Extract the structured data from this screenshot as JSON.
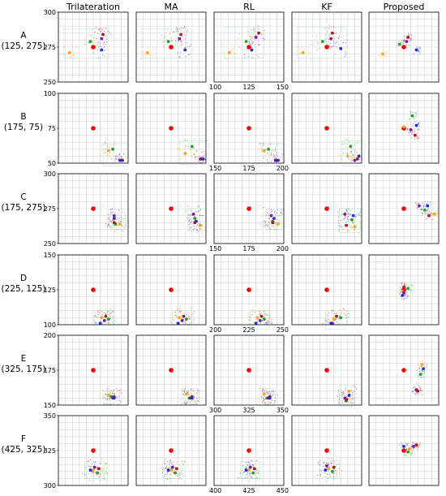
{
  "chart_data": {
    "type": "scatter",
    "columns": [
      "Trilateration",
      "MA",
      "RL",
      "KF",
      "Proposed"
    ],
    "colors": {
      "true": "#ff0000",
      "orange": "#f5a623",
      "green": "#22a02a",
      "blue": "#1f2fd0",
      "purple": "#7a1aa6",
      "darkred": "#a51d1d",
      "grid": "#d6d6d6"
    },
    "series_markers": [
      "true-position",
      "orange",
      "green",
      "purple",
      "darkred",
      "blue"
    ],
    "rows": [
      {
        "letter": "A",
        "coord": "(125, 275)",
        "truth": [
          125,
          275
        ],
        "ylim": [
          250,
          300
        ],
        "yticks": [
          250,
          275,
          300
        ],
        "xlim": [
          100,
          150
        ],
        "xticks": [
          100,
          125,
          150
        ],
        "estimates": [
          {
            "orange": [
              108,
              271
            ],
            "green": [
              123,
              279
            ],
            "purple": [
              131,
              281
            ],
            "darkred": [
              132,
              284
            ],
            "blue": [
              131,
              273
            ]
          },
          {
            "orange": [
              108,
              271
            ],
            "green": [
              123,
              279
            ],
            "purple": [
              131,
              281
            ],
            "darkred": [
              132,
              284
            ],
            "blue": [
              135,
              273
            ]
          },
          {
            "orange": [
              111,
              271
            ],
            "green": [
              123,
              279
            ],
            "purple": [
              130,
              282
            ],
            "darkred": [
              132,
              285
            ],
            "blue": [
              127,
              273
            ]
          },
          {
            "orange": [
              108,
              271
            ],
            "green": [
              122,
              279
            ],
            "purple": [
              128,
              281
            ],
            "darkred": [
              129,
              285
            ],
            "blue": [
              135,
              274
            ]
          },
          {
            "orange": [
              110,
              270
            ],
            "green": [
              122,
              277
            ],
            "purple": [
              127,
              279
            ],
            "darkred": [
              128,
              282
            ],
            "blue": [
              134,
              273
            ]
          }
        ]
      },
      {
        "letter": "B",
        "coord": "(175, 75)",
        "truth": [
          175,
          75
        ],
        "ylim": [
          50,
          100
        ],
        "yticks": [
          50,
          75,
          100
        ],
        "xlim": [
          150,
          200
        ],
        "xticks": [
          150,
          175,
          200
        ],
        "estimates": [
          {
            "orange": [
              186,
              59
            ],
            "green": [
              189,
              60
            ],
            "purple": [
              194,
              52
            ],
            "darkred": [
              196,
              52
            ],
            "blue": [
              195,
              52
            ]
          },
          {
            "orange": [
              185,
              57
            ],
            "green": [
              190,
              62
            ],
            "purple": [
              196,
              53
            ],
            "darkred": [
              197,
              53
            ],
            "blue": [
              198,
              53
            ]
          },
          {
            "orange": [
              186,
              59
            ],
            "green": [
              189,
              60
            ],
            "purple": [
              194,
              52
            ],
            "darkred": [
              196,
              52
            ],
            "blue": [
              195,
              52
            ]
          },
          {
            "orange": [
              190,
              55
            ],
            "green": [
              192,
              62
            ],
            "purple": [
              195,
              52
            ],
            "darkred": [
              197,
              53
            ],
            "blue": [
              198,
              55
            ]
          },
          {
            "orange": [
              175,
              76
            ],
            "green": [
              181,
              84
            ],
            "purple": [
              180,
              74
            ],
            "darkred": [
              183,
              70
            ],
            "blue": [
              184,
              77
            ]
          }
        ]
      },
      {
        "letter": "C",
        "coord": "(175, 275)",
        "truth": [
          175,
          275
        ],
        "ylim": [
          250,
          300
        ],
        "yticks": [
          250,
          275,
          300
        ],
        "xlim": [
          150,
          200
        ],
        "xticks": [
          150,
          175,
          200
        ],
        "estimates": [
          {
            "orange": [
              194,
              264
            ],
            "green": [
              191,
              264
            ],
            "purple": [
              190,
              270
            ],
            "darkred": [
              190,
              265
            ],
            "blue": [
              190,
              268
            ]
          },
          {
            "orange": [
              196,
              263
            ],
            "green": [
              192,
              268
            ],
            "purple": [
              191,
              271
            ],
            "darkred": [
              192,
              265
            ],
            "blue": [
              193,
              266
            ]
          },
          {
            "orange": [
              196,
              264
            ],
            "green": [
              192,
              266
            ],
            "purple": [
              191,
              270
            ],
            "darkred": [
              192,
              265
            ],
            "blue": [
              193,
              268
            ]
          },
          {
            "orange": [
              195,
              262
            ],
            "green": [
              193,
              267
            ],
            "purple": [
              188,
              271
            ],
            "darkred": [
              189,
              263
            ],
            "blue": [
              194,
              270
            ]
          },
          {
            "orange": [
              197,
              271
            ],
            "green": [
              190,
              274
            ],
            "purple": [
              186,
              277
            ],
            "darkred": [
              193,
              270
            ],
            "blue": [
              192,
              277
            ]
          }
        ]
      },
      {
        "letter": "D",
        "coord": "(225, 125)",
        "truth": [
          225,
          125
        ],
        "ylim": [
          100,
          150
        ],
        "yticks": [
          100,
          125,
          150
        ],
        "xlim": [
          200,
          250
        ],
        "xticks": [
          200,
          225,
          250
        ],
        "estimates": [
          {
            "orange": [
              231,
              105
            ],
            "green": [
              236,
              104
            ],
            "purple": [
              233,
              103
            ],
            "darkred": [
              234,
              106
            ],
            "blue": [
              230,
              101
            ]
          },
          {
            "orange": [
              231,
              105
            ],
            "green": [
              236,
              104
            ],
            "purple": [
              233,
              103
            ],
            "darkred": [
              234,
              106
            ],
            "blue": [
              230,
              101
            ]
          },
          {
            "orange": [
              231,
              105
            ],
            "green": [
              236,
              104
            ],
            "purple": [
              233,
              103
            ],
            "darkred": [
              234,
              106
            ],
            "blue": [
              230,
              101
            ]
          },
          {
            "orange": [
              230,
              104
            ],
            "green": [
              235,
              105
            ],
            "purple": [
              229,
              101
            ],
            "darkred": [
              232,
              106
            ],
            "blue": [
              228,
              101
            ]
          },
          {
            "orange": [
              224,
              124
            ],
            "green": [
              228,
              126
            ],
            "purple": [
              225,
              123
            ],
            "darkred": [
              225,
              127
            ],
            "blue": [
              224,
              121
            ]
          }
        ]
      },
      {
        "letter": "E",
        "coord": "(325, 175)",
        "truth": [
          325,
          175
        ],
        "ylim": [
          150,
          200
        ],
        "yticks": [
          150,
          175,
          200
        ],
        "xlim": [
          300,
          350
        ],
        "xticks": [
          300,
          325,
          350
        ],
        "estimates": [
          {
            "orange": [
              336,
              157
            ],
            "green": [
              338,
              156
            ],
            "purple": [
              339,
              155
            ],
            "darkred": [
              340,
              156
            ],
            "blue": [
              340,
              155
            ]
          },
          {
            "orange": [
              336,
              158
            ],
            "green": [
              338,
              155
            ],
            "purple": [
              339,
              155
            ],
            "darkred": [
              340,
              156
            ],
            "blue": [
              340,
              155
            ]
          },
          {
            "orange": [
              336,
              158
            ],
            "green": [
              338,
              155
            ],
            "purple": [
              339,
              155
            ],
            "darkred": [
              340,
              156
            ],
            "blue": [
              340,
              155
            ]
          },
          {
            "orange": [
              341,
              160
            ],
            "green": [
              339,
              153
            ],
            "purple": [
              338,
              155
            ],
            "darkred": [
              339,
              154
            ],
            "blue": [
              341,
              157
            ]
          },
          {
            "orange": [
              338,
              179
            ],
            "green": [
              337,
              172
            ],
            "purple": [
              334,
              161
            ],
            "darkred": [
              335,
              160
            ],
            "blue": [
              339,
              176
            ]
          }
        ]
      },
      {
        "letter": "F",
        "coord": "(425, 325)",
        "truth": [
          425,
          325
        ],
        "ylim": [
          300,
          350
        ],
        "yticks": [
          300,
          325,
          350
        ],
        "xlim": [
          400,
          450
        ],
        "xticks": [
          400,
          425,
          450
        ],
        "estimates": [
          {
            "orange": [
              425,
              311
            ],
            "green": [
              428,
              309
            ],
            "purple": [
              426,
              313
            ],
            "darkred": [
              429,
              312
            ],
            "blue": [
              423,
              311
            ]
          },
          {
            "orange": [
              425,
              311
            ],
            "green": [
              428,
              309
            ],
            "purple": [
              426,
              313
            ],
            "darkred": [
              429,
              312
            ],
            "blue": [
              423,
              311
            ]
          },
          {
            "orange": [
              425,
              311
            ],
            "green": [
              428,
              309
            ],
            "purple": [
              426,
              313
            ],
            "darkred": [
              429,
              312
            ],
            "blue": [
              423,
              311
            ]
          },
          {
            "orange": [
              426,
              312
            ],
            "green": [
              429,
              310
            ],
            "purple": [
              425,
              314
            ],
            "darkred": [
              430,
              313
            ],
            "blue": [
              424,
              311
            ]
          },
          {
            "orange": [
              429,
              326
            ],
            "green": [
              428,
              324
            ],
            "purple": [
              432,
              328
            ],
            "darkred": [
              434,
              329
            ],
            "blue": [
              425,
              328
            ]
          }
        ]
      }
    ],
    "outer_y_ticks_shown_on_column": "Trilateration",
    "outer_x_ticks_shown_on_column": "RL",
    "grid": true
  }
}
